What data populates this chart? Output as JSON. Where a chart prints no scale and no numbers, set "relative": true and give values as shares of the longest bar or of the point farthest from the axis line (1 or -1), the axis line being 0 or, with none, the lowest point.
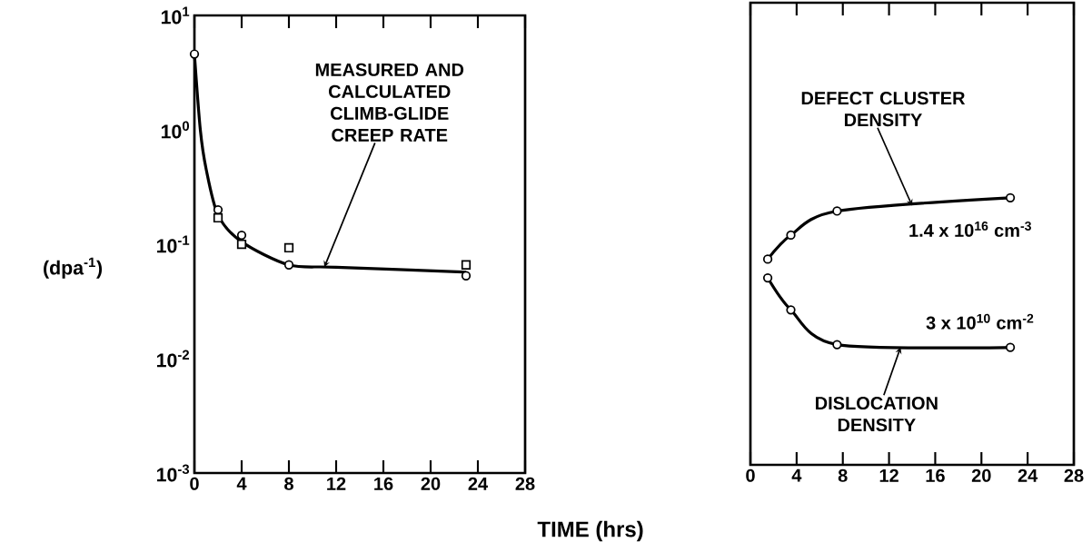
{
  "chart_data": [
    {
      "type": "line",
      "xlabel": "TIME (hrs)",
      "ylabel": "(dpa$^{-1}$)",
      "log": "y",
      "xlim": [
        0,
        28
      ],
      "xticks": [
        0,
        4,
        8,
        12,
        16,
        20,
        24,
        28
      ],
      "ylim": [
        0.001,
        10
      ],
      "yticks": [
        {
          "value": 0.001,
          "label": "10$^{-3}$"
        },
        {
          "value": 0.01,
          "label": "10$^{-2}$"
        },
        {
          "value": 0.1,
          "label": "10$^{-1}$"
        },
        {
          "value": 1,
          "label": "10$^{0}$"
        },
        {
          "value": 10,
          "label": "10$^{1}$"
        }
      ],
      "annotations": [
        {
          "text": "MEASURED AND CALCULATED CLIMB-GLIDE CREEP RATE",
          "x": 11,
          "y": 0.063
        }
      ],
      "series": [
        {
          "type": "line",
          "marker": "none",
          "color": "#000000",
          "x": [
            0,
            0.5,
            1,
            2,
            4,
            8,
            12,
            23
          ],
          "values": [
            4.6,
            1.0,
            0.45,
            0.18,
            0.105,
            0.066,
            0.063,
            0.057
          ]
        },
        {
          "type": "scatter",
          "marker": "circle",
          "color": "#000000",
          "x": [
            0,
            2,
            4,
            8,
            23
          ],
          "values": [
            4.6,
            0.2,
            0.12,
            0.066,
            0.053
          ]
        },
        {
          "type": "scatter",
          "marker": "square",
          "color": "#000000",
          "x": [
            2,
            4,
            8,
            23
          ],
          "values": [
            0.17,
            0.1,
            0.093,
            0.066
          ]
        }
      ]
    },
    {
      "type": "line",
      "relative": true,
      "tick_labels": "x",
      "marker": "circle",
      "xlim": [
        0,
        28
      ],
      "xticks": [
        0,
        4,
        8,
        12,
        16,
        20,
        24,
        28
      ],
      "annotations": [
        {
          "text": "DEFECT CLUSTER DENSITY",
          "x": 14,
          "y": 0.97
        },
        "1.4 x 10$^{16}$ cm$^{-3}$",
        "3 x 10$^{10}$ cm$^{-2}$",
        {
          "text": "DISLOCATION DENSITY",
          "x": 13,
          "y": 0.44
        }
      ],
      "series": [
        {
          "color": "#000000",
          "x": [
            1.5,
            3.5,
            7.5,
            22.5
          ],
          "values": [
            0.77,
            0.86,
            0.95,
            1.0
          ]
        },
        {
          "color": "#000000",
          "x": [
            1.5,
            3.5,
            7.5,
            22.5
          ],
          "values": [
            0.7,
            0.58,
            0.45,
            0.44
          ]
        }
      ]
    }
  ]
}
